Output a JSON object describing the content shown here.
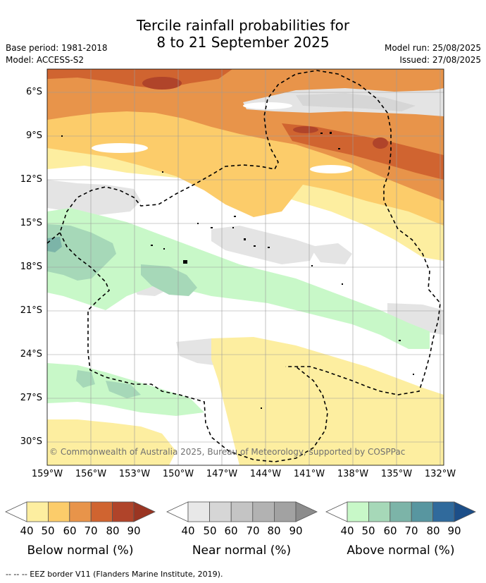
{
  "title": {
    "line1": "Tercile rainfall probabilities for",
    "line2": "8 to 21 September 2025"
  },
  "meta": {
    "base_period": "Base period: 1981-2018",
    "model": "Model: ACCESS-S2",
    "model_run": "Model run: 25/08/2025",
    "issued": "Issued: 27/08/2025"
  },
  "map": {
    "lat_labels": [
      "6°S",
      "9°S",
      "12°S",
      "15°S",
      "18°S",
      "21°S",
      "24°S",
      "27°S",
      "30°S"
    ],
    "lon_labels": [
      "159°W",
      "156°W",
      "153°W",
      "150°W",
      "147°W",
      "144°W",
      "141°W",
      "138°W",
      "135°W",
      "132°W"
    ],
    "copyright": "© Commonwealth of Australia 2025, Bureau of Meteorology, supported by COSPPac"
  },
  "legend": {
    "ticks": [
      "40",
      "50",
      "60",
      "70",
      "80",
      "90"
    ],
    "below": {
      "label": "Below normal (%)",
      "colors": [
        "#fdeea0",
        "#fccc6a",
        "#e8944a",
        "#d06430",
        "#b0442a",
        "#9a3522"
      ]
    },
    "near": {
      "label": "Near normal (%)",
      "colors": [
        "#e8e8e8",
        "#d6d6d6",
        "#c4c4c4",
        "#b2b2b2",
        "#a2a2a2",
        "#8c8c8c"
      ]
    },
    "above": {
      "label": "Above normal (%)",
      "colors": [
        "#c8f8c8",
        "#a6d8b8",
        "#7cb4a8",
        "#5896a0",
        "#306a9c",
        "#1c4e88"
      ]
    }
  },
  "footer": "--  --  -- EEZ border V11 (Flanders Marine Institute, 2019)."
}
